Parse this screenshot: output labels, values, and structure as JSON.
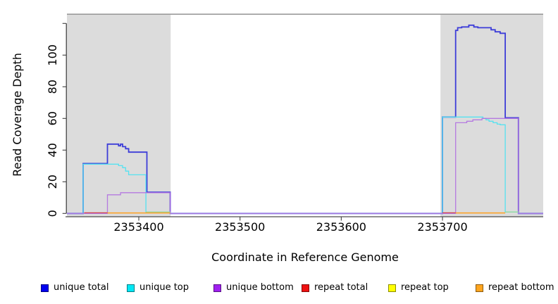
{
  "chart_data": {
    "type": "line",
    "subtype": "step-coverage",
    "title": "",
    "xlabel": "Coordinate in Reference Genome",
    "ylabel": "Read Coverage Depth",
    "xlim": [
      2353329,
      2353799.5
    ],
    "ylim": [
      0,
      126
    ],
    "x_ticks": [
      2353400,
      2353500,
      2353600,
      2353700
    ],
    "y_ticks": [
      0,
      20,
      40,
      60,
      80,
      100
    ],
    "y_extra_unlabeled_tick": 120,
    "grid": false,
    "plot_bg": "#ffffff",
    "shaded_region_color": "#dcdcdc",
    "top_border_color": "#8a8a8a",
    "shaded_regions_x": [
      [
        2353329,
        2353431.5
      ],
      [
        2353698,
        2353799.5
      ]
    ],
    "series": [
      {
        "name": "unique total",
        "legend_color": "#0000f0",
        "line_color": "#3d3dd8",
        "line_width": 1.8,
        "steps": [
          [
            2353329,
            0
          ],
          [
            2353345,
            31.5
          ],
          [
            2353369,
            43.8
          ],
          [
            2353380,
            42.7
          ],
          [
            2353382,
            43.8
          ],
          [
            2353384,
            42.2
          ],
          [
            2353387,
            40.9
          ],
          [
            2353390,
            38.7
          ],
          [
            2353408,
            13.4
          ],
          [
            2353431,
            0
          ],
          [
            2353700,
            60.9
          ],
          [
            2353713,
            115.6
          ],
          [
            2353715,
            117.3
          ],
          [
            2353719,
            117.8
          ],
          [
            2353726,
            118.9
          ],
          [
            2353731,
            117.8
          ],
          [
            2353735,
            117.3
          ],
          [
            2353748,
            116.0
          ],
          [
            2353752,
            114.7
          ],
          [
            2353757,
            113.8
          ],
          [
            2353762,
            60.4
          ],
          [
            2353775,
            0
          ]
        ]
      },
      {
        "name": "unique top",
        "legend_color": "#00e8f5",
        "line_color": "#55e2f0",
        "line_width": 1.3,
        "steps": [
          [
            2353329,
            0
          ],
          [
            2353345,
            31.1
          ],
          [
            2353380,
            30.2
          ],
          [
            2353384,
            28.9
          ],
          [
            2353387,
            26.7
          ],
          [
            2353390,
            24.4
          ],
          [
            2353407,
            0.7
          ],
          [
            2353431,
            0
          ],
          [
            2353700,
            60.9
          ],
          [
            2353740,
            60.0
          ],
          [
            2353743,
            59.1
          ],
          [
            2353746,
            58.2
          ],
          [
            2353750,
            57.3
          ],
          [
            2353754,
            56.4
          ],
          [
            2353757,
            56.0
          ],
          [
            2353762,
            0.9
          ],
          [
            2353775,
            0
          ]
        ]
      },
      {
        "name": "unique bottom",
        "legend_color": "#a020f0",
        "line_color": "#b06fe0",
        "line_width": 1.3,
        "opacity": 0.9,
        "steps": [
          [
            2353329,
            0
          ],
          [
            2353369,
            11.8
          ],
          [
            2353382,
            13.1
          ],
          [
            2353431,
            0
          ],
          [
            2353713,
            57.3
          ],
          [
            2353724,
            58.2
          ],
          [
            2353730,
            59.1
          ],
          [
            2353739,
            60.0
          ],
          [
            2353775,
            0
          ]
        ]
      },
      {
        "name": "repeat total",
        "legend_color": "#ee1111",
        "line_color": "#d04050",
        "line_width": 1.3,
        "segments": [
          [
            2353346,
            2353369,
            0.4
          ],
          [
            2353700,
            2353713,
            0.4
          ]
        ]
      },
      {
        "name": "repeat top",
        "legend_color": "#ffff00",
        "line_color": "#99d999",
        "line_width": 1.3,
        "segments": [
          [
            2353407,
            2353431,
            0.9
          ],
          [
            2353762,
            2353775,
            0.9
          ]
        ]
      },
      {
        "name": "repeat bottom",
        "legend_color": "#ffa51e",
        "line_color": "#ff9f1e",
        "line_width": 1.6,
        "segments": [
          [
            2353369,
            2353431,
            0.3
          ],
          [
            2353713,
            2353762,
            0.3
          ]
        ]
      }
    ]
  },
  "legend": {
    "items": [
      {
        "label": "unique total",
        "color": "#0000f0"
      },
      {
        "label": "unique top",
        "color": "#00e8f5"
      },
      {
        "label": "unique bottom",
        "color": "#a020f0"
      },
      {
        "label": "repeat total",
        "color": "#ee1111"
      },
      {
        "label": "repeat top",
        "color": "#ffff00"
      },
      {
        "label": "repeat bottom",
        "color": "#ffa51e"
      }
    ]
  }
}
